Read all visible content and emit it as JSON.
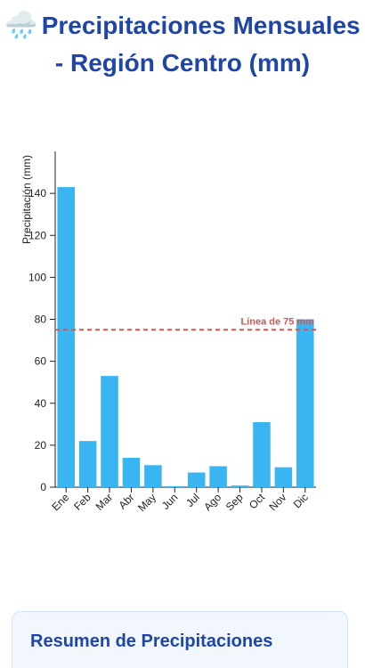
{
  "header": {
    "icon": "rain-cloud-icon",
    "title": "Precipitaciones Mensuales - Región Centro (mm)"
  },
  "chart_data": {
    "type": "bar",
    "categories": [
      "Ene",
      "Feb",
      "Mar",
      "Abr",
      "May",
      "Jun",
      "Jul",
      "Ago",
      "Sep",
      "Oct",
      "Nov",
      "Dic"
    ],
    "values": [
      143,
      22,
      53,
      14,
      10.5,
      0.5,
      7,
      10,
      0.8,
      31,
      9.5,
      80
    ],
    "ylabel": "Precipitación (mm)",
    "ylim": [
      0,
      160
    ],
    "yticks": [
      0,
      20,
      40,
      60,
      80,
      100,
      120,
      140
    ],
    "bar_color": "#39b6f2",
    "reference_line": {
      "value": 75,
      "label": "Línea de 75 mm",
      "color": "#d9534f"
    },
    "grid": false,
    "legend": "none"
  },
  "summary": {
    "title": "Resumen de Precipitaciones"
  }
}
